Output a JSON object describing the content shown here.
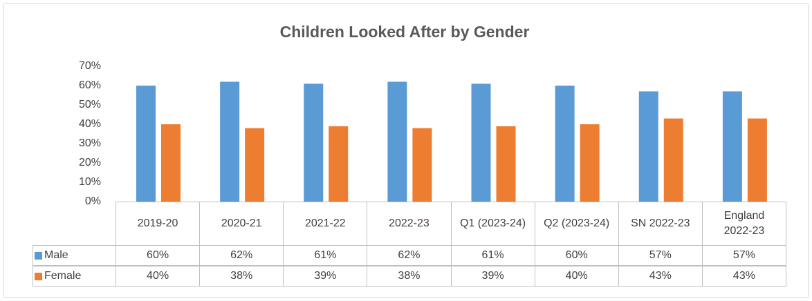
{
  "chart_data": {
    "type": "bar",
    "title": "Children Looked After by Gender",
    "categories": [
      "2019-20",
      "2020-21",
      "2021-22",
      "2022-23",
      "Q1 (2023-24)",
      "Q2 (2023-24)",
      "SN 2022-23",
      "England 2022-23"
    ],
    "series": [
      {
        "name": "Male",
        "color": "#5b9bd5",
        "values": [
          60,
          62,
          61,
          62,
          61,
          60,
          57,
          57
        ],
        "value_labels": [
          "60%",
          "62%",
          "61%",
          "62%",
          "61%",
          "60%",
          "57%",
          "57%"
        ]
      },
      {
        "name": "Female",
        "color": "#ed7d31",
        "values": [
          40,
          38,
          39,
          38,
          39,
          40,
          43,
          43
        ],
        "value_labels": [
          "40%",
          "38%",
          "39%",
          "38%",
          "39%",
          "40%",
          "43%",
          "43%"
        ]
      }
    ],
    "ylim": [
      0,
      70
    ],
    "yticks": [
      {
        "value": 0,
        "label": "0%"
      },
      {
        "value": 10,
        "label": "10%"
      },
      {
        "value": 20,
        "label": "20%"
      },
      {
        "value": 30,
        "label": "30%"
      },
      {
        "value": 40,
        "label": "40%"
      },
      {
        "value": 50,
        "label": "50%"
      },
      {
        "value": 60,
        "label": "60%"
      },
      {
        "value": 70,
        "label": "70%"
      }
    ]
  }
}
